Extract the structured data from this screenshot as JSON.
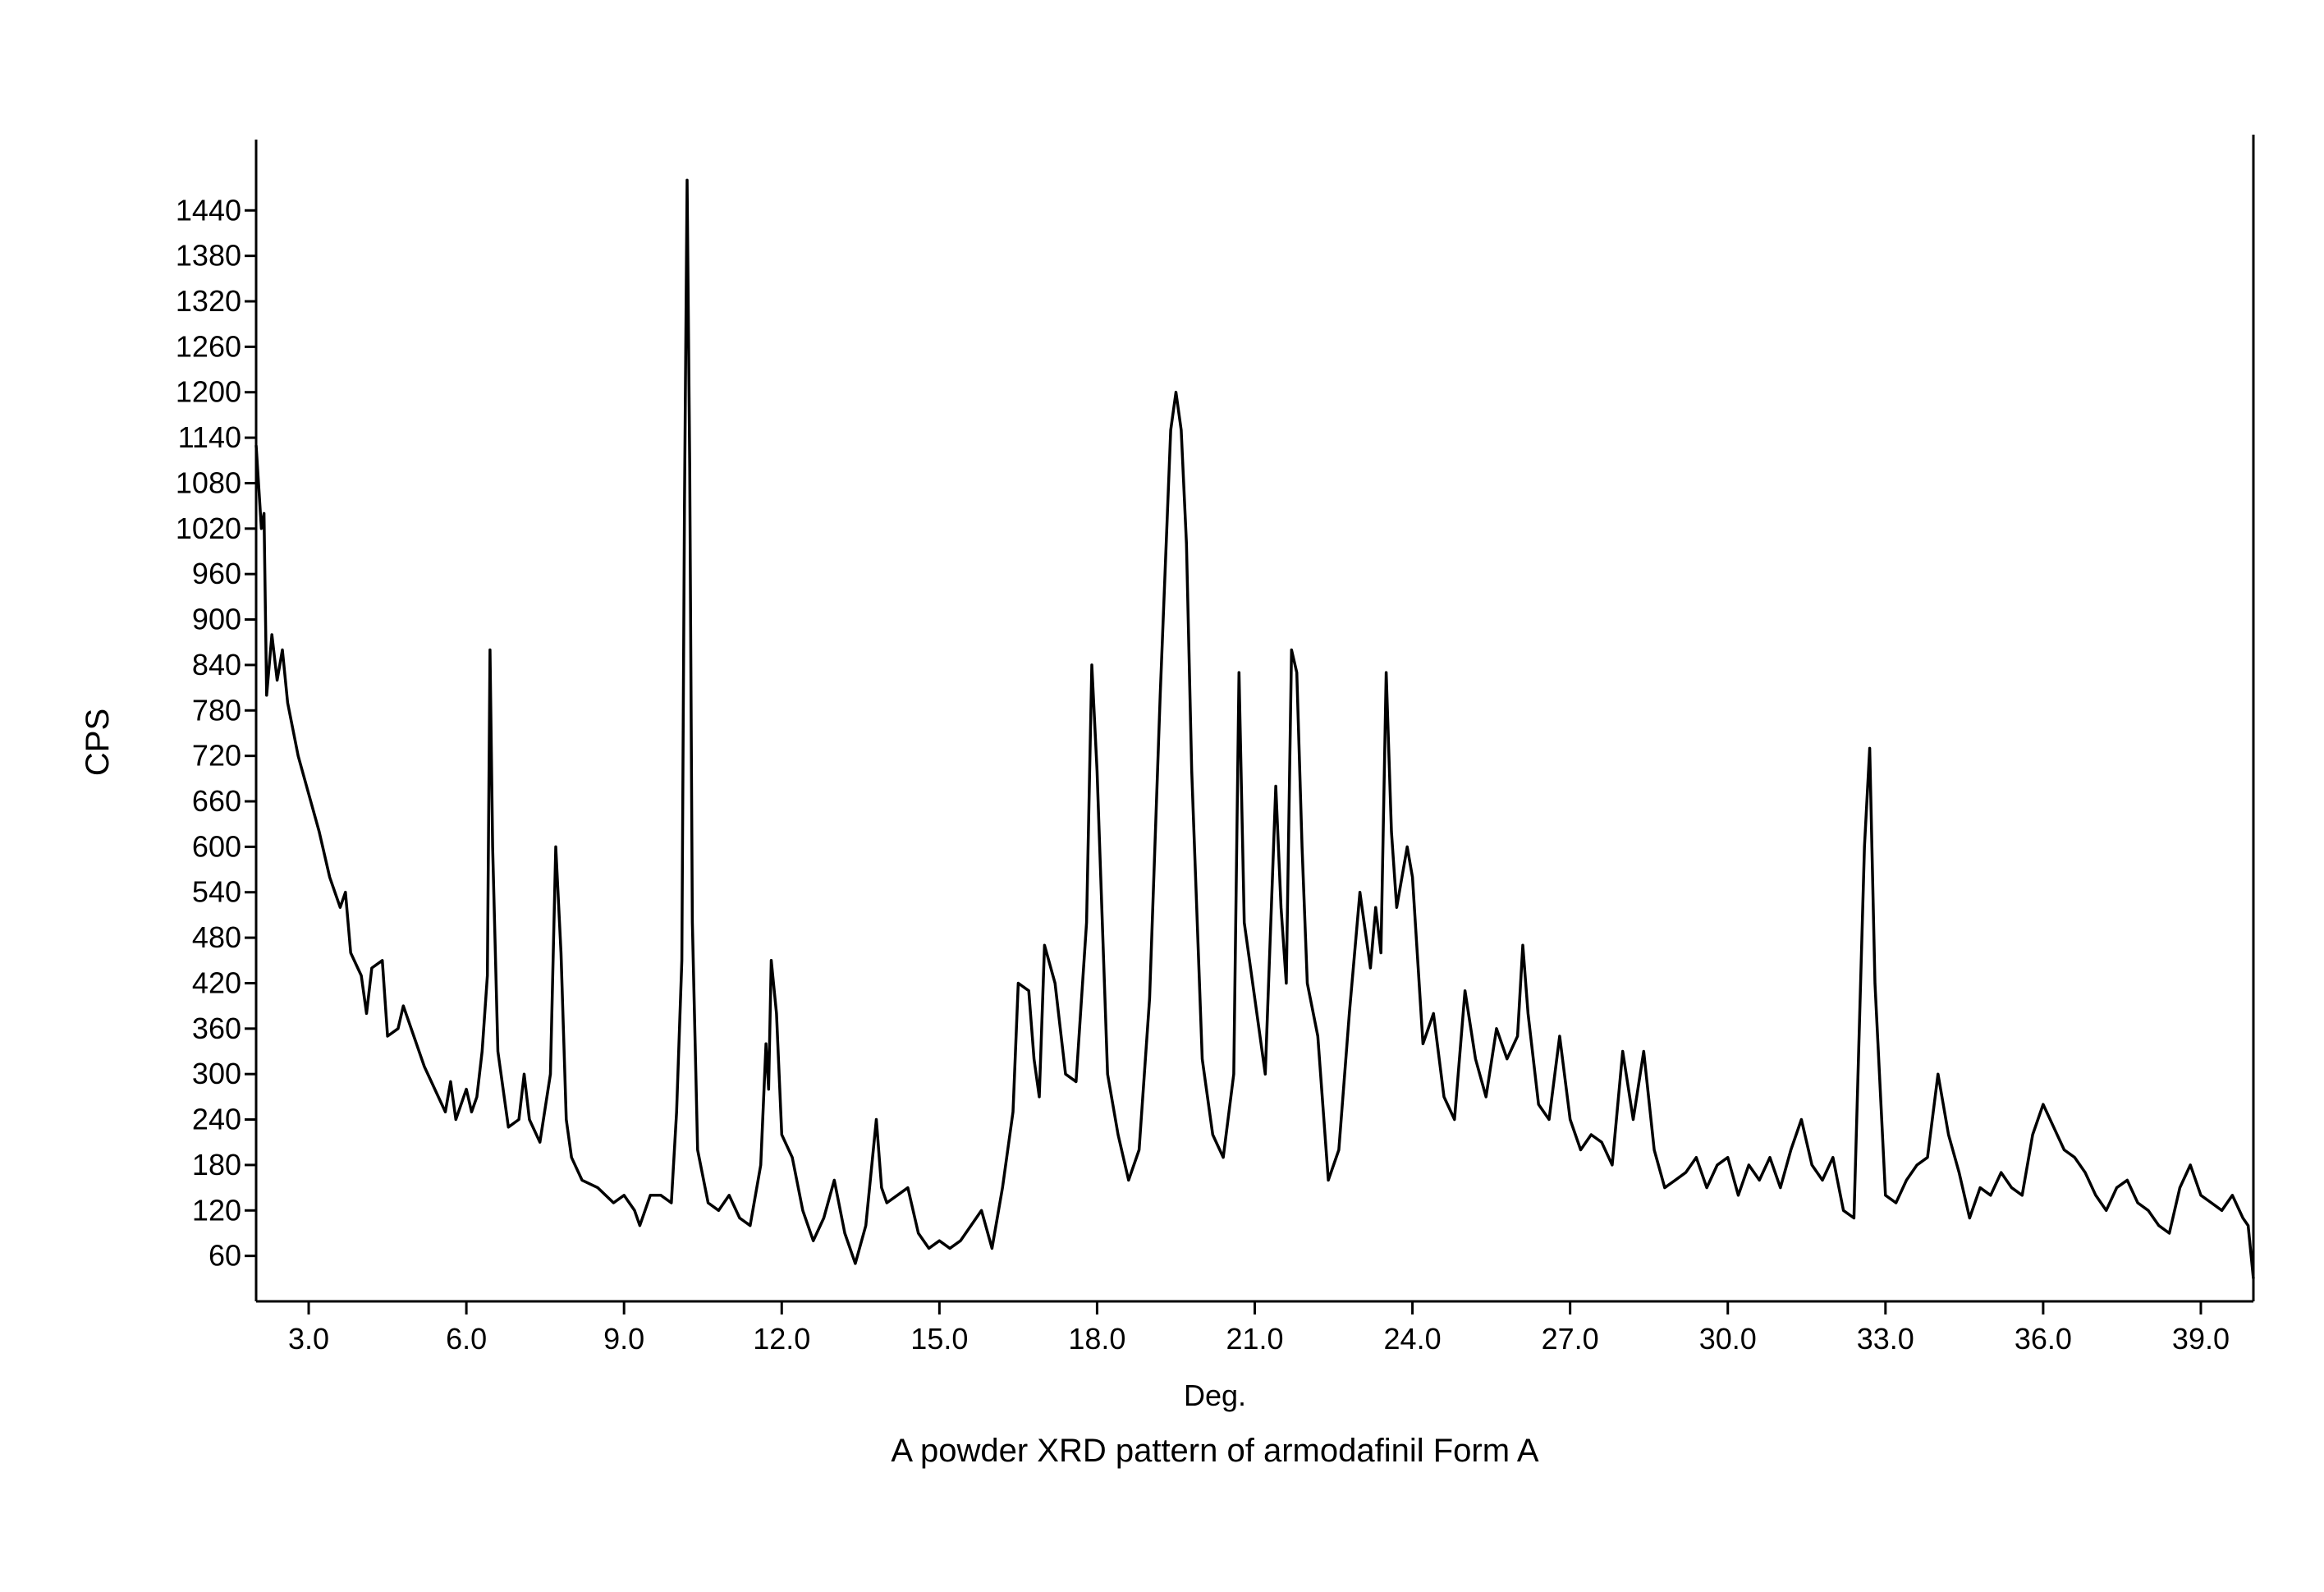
{
  "chart_data": {
    "type": "line",
    "title": "A powder XRD pattern of armodafinil Form A",
    "xlabel": "Deg.",
    "ylabel": "CPS",
    "color": "#000000",
    "xlim": [
      2,
      40
    ],
    "ylim": [
      0,
      1540
    ],
    "xticks": [
      {
        "value": 3,
        "label": "3.0"
      },
      {
        "value": 6,
        "label": "6.0"
      },
      {
        "value": 9,
        "label": "9.0"
      },
      {
        "value": 12,
        "label": "12.0"
      },
      {
        "value": 15,
        "label": "15.0"
      },
      {
        "value": 18,
        "label": "18.0"
      },
      {
        "value": 21,
        "label": "21.0"
      },
      {
        "value": 24,
        "label": "24.0"
      },
      {
        "value": 27,
        "label": "27.0"
      },
      {
        "value": 30,
        "label": "30.0"
      },
      {
        "value": 33,
        "label": "33.0"
      },
      {
        "value": 36,
        "label": "36.0"
      },
      {
        "value": 39,
        "label": "39.0"
      }
    ],
    "yticks": [
      60,
      120,
      180,
      240,
      300,
      360,
      420,
      480,
      540,
      600,
      660,
      720,
      780,
      840,
      900,
      960,
      1020,
      1080,
      1140,
      1200,
      1260,
      1320,
      1380,
      1440
    ],
    "x": [
      2.0,
      2.1,
      2.15,
      2.2,
      2.3,
      2.4,
      2.5,
      2.6,
      2.8,
      3.0,
      3.2,
      3.4,
      3.6,
      3.7,
      3.8,
      4.0,
      4.1,
      4.2,
      4.4,
      4.5,
      4.7,
      4.8,
      5.0,
      5.2,
      5.4,
      5.6,
      5.7,
      5.8,
      6.0,
      6.1,
      6.2,
      6.3,
      6.4,
      6.45,
      6.5,
      6.6,
      6.8,
      7.0,
      7.1,
      7.2,
      7.4,
      7.6,
      7.7,
      7.8,
      7.9,
      8.0,
      8.2,
      8.5,
      8.8,
      9.0,
      9.2,
      9.3,
      9.5,
      9.7,
      9.9,
      10.0,
      10.1,
      10.15,
      10.2,
      10.25,
      10.3,
      10.4,
      10.6,
      10.8,
      11.0,
      11.2,
      11.4,
      11.6,
      11.7,
      11.75,
      11.8,
      11.9,
      12.0,
      12.2,
      12.4,
      12.6,
      12.8,
      13.0,
      13.2,
      13.4,
      13.6,
      13.8,
      13.9,
      14.0,
      14.2,
      14.4,
      14.6,
      14.8,
      15.0,
      15.2,
      15.4,
      15.6,
      15.8,
      16.0,
      16.2,
      16.4,
      16.5,
      16.7,
      16.8,
      16.9,
      17.0,
      17.2,
      17.4,
      17.6,
      17.8,
      17.9,
      18.0,
      18.2,
      18.4,
      18.6,
      18.8,
      19.0,
      19.2,
      19.4,
      19.5,
      19.6,
      19.7,
      19.8,
      20.0,
      20.2,
      20.4,
      20.6,
      20.7,
      20.8,
      21.0,
      21.2,
      21.4,
      21.5,
      21.6,
      21.7,
      21.8,
      21.9,
      22.0,
      22.2,
      22.4,
      22.6,
      22.8,
      23.0,
      23.2,
      23.3,
      23.4,
      23.5,
      23.6,
      23.7,
      23.9,
      24.0,
      24.2,
      24.4,
      24.6,
      24.8,
      25.0,
      25.2,
      25.4,
      25.6,
      25.8,
      26.0,
      26.1,
      26.2,
      26.4,
      26.6,
      26.8,
      27.0,
      27.2,
      27.4,
      27.6,
      27.8,
      28.0,
      28.2,
      28.4,
      28.6,
      28.8,
      29.0,
      29.2,
      29.4,
      29.6,
      29.8,
      30.0,
      30.2,
      30.4,
      30.6,
      30.8,
      31.0,
      31.2,
      31.4,
      31.6,
      31.8,
      32.0,
      32.2,
      32.4,
      32.6,
      32.7,
      32.8,
      33.0,
      33.2,
      33.4,
      33.6,
      33.8,
      34.0,
      34.2,
      34.4,
      34.6,
      34.8,
      35.0,
      35.2,
      35.4,
      35.6,
      35.8,
      36.0,
      36.2,
      36.4,
      36.6,
      36.8,
      37.0,
      37.2,
      37.4,
      37.6,
      37.8,
      38.0,
      38.2,
      38.4,
      38.6,
      38.8,
      39.0,
      39.2,
      39.4,
      39.6,
      39.8,
      39.9,
      40.0
    ],
    "values": [
      1130,
      1020,
      1040,
      800,
      880,
      820,
      860,
      790,
      720,
      670,
      620,
      560,
      520,
      540,
      460,
      430,
      380,
      440,
      450,
      350,
      360,
      390,
      350,
      310,
      280,
      250,
      290,
      240,
      280,
      250,
      270,
      330,
      430,
      860,
      600,
      330,
      230,
      240,
      300,
      240,
      210,
      300,
      600,
      460,
      240,
      190,
      160,
      150,
      130,
      140,
      120,
      100,
      140,
      140,
      130,
      250,
      450,
      1050,
      1480,
      1100,
      500,
      200,
      130,
      120,
      140,
      110,
      100,
      180,
      340,
      280,
      450,
      380,
      220,
      190,
      120,
      80,
      110,
      160,
      90,
      50,
      100,
      240,
      150,
      130,
      140,
      150,
      90,
      70,
      80,
      70,
      80,
      100,
      120,
      70,
      150,
      250,
      420,
      410,
      320,
      270,
      470,
      420,
      300,
      290,
      500,
      840,
      700,
      300,
      220,
      160,
      200,
      400,
      800,
      1150,
      1200,
      1150,
      1000,
      700,
      320,
      220,
      190,
      300,
      830,
      500,
      400,
      300,
      680,
      520,
      420,
      860,
      830,
      600,
      420,
      350,
      160,
      200,
      380,
      540,
      440,
      520,
      460,
      830,
      620,
      520,
      600,
      560,
      340,
      380,
      270,
      240,
      410,
      320,
      270,
      360,
      320,
      350,
      470,
      380,
      260,
      240,
      350,
      240,
      200,
      220,
      210,
      180,
      330,
      240,
      330,
      200,
      150,
      160,
      170,
      190,
      150,
      180,
      190,
      140,
      180,
      160,
      190,
      150,
      200,
      240,
      180,
      160,
      190,
      120,
      110,
      600,
      730,
      420,
      140,
      130,
      160,
      180,
      190,
      300,
      220,
      170,
      110,
      150,
      140,
      170,
      150,
      140,
      220,
      260,
      230,
      200,
      190,
      170,
      140,
      120,
      150,
      160,
      130,
      120,
      100,
      90,
      150,
      180,
      140,
      130,
      120,
      140,
      110,
      100,
      30
    ]
  }
}
